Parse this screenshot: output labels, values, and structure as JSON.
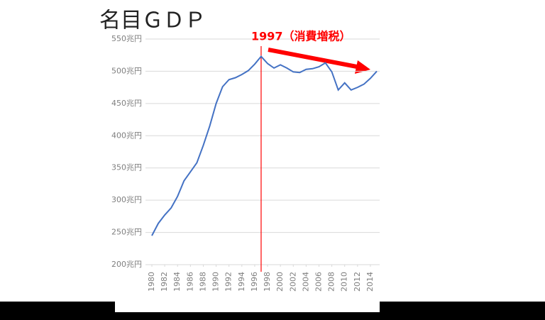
{
  "chart_data": {
    "type": "line",
    "title": "名目ＧＤＰ",
    "annotation": {
      "text": "1997（消費増税）",
      "x": 1997,
      "color": "#ff0000"
    },
    "x": [
      1980,
      1981,
      1982,
      1983,
      1984,
      1985,
      1986,
      1987,
      1988,
      1989,
      1990,
      1991,
      1992,
      1993,
      1994,
      1995,
      1996,
      1997,
      1998,
      1999,
      2000,
      2001,
      2002,
      2003,
      2004,
      2005,
      2006,
      2007,
      2008,
      2009,
      2010,
      2011,
      2012,
      2013,
      2014,
      2015
    ],
    "series": [
      {
        "name": "名目GDP",
        "color": "#4472c4",
        "values": [
          245,
          264,
          277,
          288,
          306,
          330,
          344,
          358,
          385,
          415,
          450,
          476,
          487,
          490,
          495,
          501,
          511,
          523,
          512,
          505,
          510,
          505,
          499,
          498,
          503,
          504,
          507,
          513,
          499,
          471,
          482,
          471,
          475,
          480,
          489,
          500
        ]
      }
    ],
    "xlim": [
      1980,
      2015
    ],
    "xticks": [
      1980,
      1982,
      1984,
      1986,
      1988,
      1990,
      1992,
      1994,
      1996,
      1998,
      2000,
      2002,
      2004,
      2006,
      2008,
      2010,
      2012,
      2014
    ],
    "ylim": [
      200,
      550
    ],
    "yticks": [
      {
        "value": 200,
        "label": "200兆円"
      },
      {
        "value": 250,
        "label": "250兆円"
      },
      {
        "value": 300,
        "label": "300兆円"
      },
      {
        "value": 350,
        "label": "350兆円"
      },
      {
        "value": 400,
        "label": "400兆円"
      },
      {
        "value": 450,
        "label": "450兆円"
      },
      {
        "value": 500,
        "label": "500兆円"
      },
      {
        "value": 550,
        "label": "550兆円"
      }
    ],
    "grid": true
  }
}
